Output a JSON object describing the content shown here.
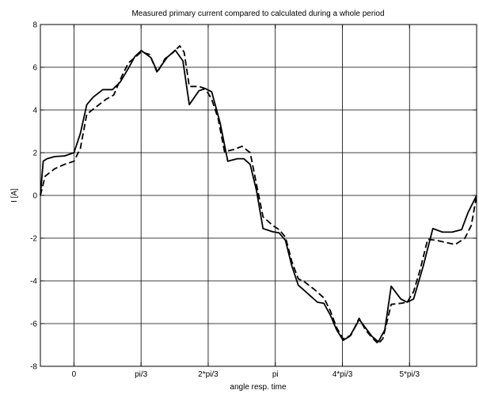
{
  "chart_data": {
    "type": "line",
    "title": "Measured primary current compared to calculated during a whole period",
    "xlabel": "angle resp. time",
    "ylabel": "I [A]",
    "xlim": [
      -0.524,
      6.283
    ],
    "ylim": [
      -8,
      8
    ],
    "grid": true,
    "x_ticks": [
      {
        "value": 0,
        "label": "0"
      },
      {
        "value": 1.0472,
        "label": "pi/3"
      },
      {
        "value": 2.0944,
        "label": "2*pi/3"
      },
      {
        "value": 3.1416,
        "label": "pi"
      },
      {
        "value": 4.1888,
        "label": "4*pi/3"
      },
      {
        "value": 5.236,
        "label": "5*pi/3"
      }
    ],
    "y_ticks": [
      {
        "value": 8,
        "label": "8"
      },
      {
        "value": 6,
        "label": "6"
      },
      {
        "value": 4,
        "label": "4"
      },
      {
        "value": 2,
        "label": "2"
      },
      {
        "value": 0,
        "label": "0"
      },
      {
        "value": -2,
        "label": "-2"
      },
      {
        "value": -4,
        "label": "-4"
      },
      {
        "value": -6,
        "label": "-6"
      },
      {
        "value": -8,
        "label": "-8"
      }
    ],
    "series": [
      {
        "style": "solid",
        "color": "#000000",
        "points": [
          [
            -0.524,
            0.0
          ],
          [
            -0.48,
            1.6
          ],
          [
            -0.42,
            1.72
          ],
          [
            -0.3,
            1.82
          ],
          [
            -0.15,
            1.85
          ],
          [
            0.0,
            2.0
          ],
          [
            0.1,
            2.9
          ],
          [
            0.2,
            4.25
          ],
          [
            0.3,
            4.6
          ],
          [
            0.45,
            4.95
          ],
          [
            0.6,
            4.95
          ],
          [
            0.72,
            5.3
          ],
          [
            0.85,
            5.95
          ],
          [
            0.95,
            6.5
          ],
          [
            1.05,
            6.78
          ],
          [
            1.2,
            6.45
          ],
          [
            1.3,
            5.8
          ],
          [
            1.45,
            6.45
          ],
          [
            1.58,
            6.8
          ],
          [
            1.7,
            6.3
          ],
          [
            1.8,
            4.25
          ],
          [
            1.95,
            4.9
          ],
          [
            2.05,
            5.0
          ],
          [
            2.15,
            4.85
          ],
          [
            2.28,
            3.4
          ],
          [
            2.4,
            1.6
          ],
          [
            2.55,
            1.72
          ],
          [
            2.65,
            1.72
          ],
          [
            2.75,
            1.45
          ],
          [
            2.85,
            0.2
          ],
          [
            2.95,
            -1.55
          ],
          [
            3.1,
            -1.7
          ],
          [
            3.2,
            -1.75
          ],
          [
            3.3,
            -2.1
          ],
          [
            3.4,
            -3.3
          ],
          [
            3.5,
            -4.2
          ],
          [
            3.65,
            -4.6
          ],
          [
            3.8,
            -5.0
          ],
          [
            3.9,
            -5.05
          ],
          [
            4.0,
            -5.6
          ],
          [
            4.1,
            -6.3
          ],
          [
            4.2,
            -6.78
          ],
          [
            4.3,
            -6.6
          ],
          [
            4.4,
            -6.1
          ],
          [
            4.45,
            -5.8
          ],
          [
            4.55,
            -6.2
          ],
          [
            4.65,
            -6.6
          ],
          [
            4.75,
            -6.85
          ],
          [
            4.85,
            -6.3
          ],
          [
            4.95,
            -4.25
          ],
          [
            5.1,
            -4.85
          ],
          [
            5.2,
            -5.0
          ],
          [
            5.3,
            -4.85
          ],
          [
            5.45,
            -3.3
          ],
          [
            5.6,
            -1.55
          ],
          [
            5.75,
            -1.72
          ],
          [
            5.9,
            -1.72
          ],
          [
            6.05,
            -1.6
          ],
          [
            6.15,
            -0.8
          ],
          [
            6.283,
            0.0
          ]
        ]
      },
      {
        "style": "dashed",
        "color": "#000000",
        "points": [
          [
            -0.524,
            0.0
          ],
          [
            -0.45,
            0.9
          ],
          [
            -0.3,
            1.25
          ],
          [
            -0.15,
            1.45
          ],
          [
            0.0,
            1.6
          ],
          [
            0.1,
            2.2
          ],
          [
            0.2,
            3.8
          ],
          [
            0.35,
            4.15
          ],
          [
            0.5,
            4.5
          ],
          [
            0.62,
            4.7
          ],
          [
            0.75,
            5.6
          ],
          [
            0.85,
            6.2
          ],
          [
            0.95,
            6.45
          ],
          [
            1.05,
            6.72
          ],
          [
            1.18,
            6.6
          ],
          [
            1.3,
            5.75
          ],
          [
            1.42,
            6.4
          ],
          [
            1.55,
            6.7
          ],
          [
            1.65,
            7.0
          ],
          [
            1.72,
            6.7
          ],
          [
            1.8,
            5.1
          ],
          [
            1.95,
            5.1
          ],
          [
            2.05,
            5.0
          ],
          [
            2.15,
            4.5
          ],
          [
            2.25,
            3.6
          ],
          [
            2.35,
            2.05
          ],
          [
            2.5,
            2.15
          ],
          [
            2.62,
            2.3
          ],
          [
            2.75,
            2.0
          ],
          [
            2.85,
            0.5
          ],
          [
            2.95,
            -1.0
          ],
          [
            3.1,
            -1.4
          ],
          [
            3.2,
            -1.6
          ],
          [
            3.3,
            -1.95
          ],
          [
            3.4,
            -3.1
          ],
          [
            3.5,
            -3.9
          ],
          [
            3.6,
            -4.05
          ],
          [
            3.75,
            -4.4
          ],
          [
            3.9,
            -4.8
          ],
          [
            4.0,
            -5.4
          ],
          [
            4.1,
            -6.2
          ],
          [
            4.2,
            -6.72
          ],
          [
            4.32,
            -6.55
          ],
          [
            4.45,
            -5.75
          ],
          [
            4.55,
            -6.3
          ],
          [
            4.65,
            -6.65
          ],
          [
            4.75,
            -6.95
          ],
          [
            4.82,
            -6.7
          ],
          [
            4.95,
            -5.1
          ],
          [
            5.1,
            -5.05
          ],
          [
            5.2,
            -5.0
          ],
          [
            5.3,
            -4.5
          ],
          [
            5.4,
            -3.5
          ],
          [
            5.52,
            -2.05
          ],
          [
            5.65,
            -2.1
          ],
          [
            5.8,
            -2.2
          ],
          [
            5.95,
            -2.3
          ],
          [
            6.1,
            -2.0
          ],
          [
            6.2,
            -1.4
          ],
          [
            6.283,
            0.0
          ]
        ]
      }
    ]
  }
}
